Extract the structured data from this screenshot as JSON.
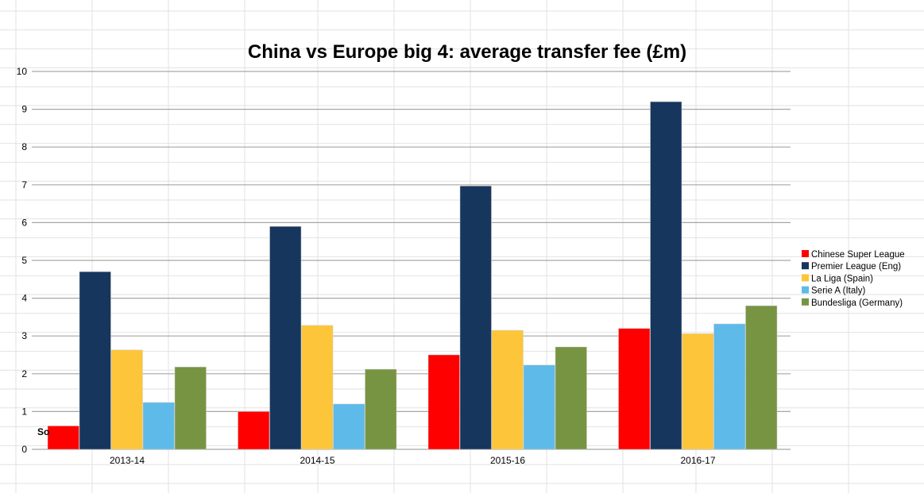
{
  "chart_data": {
    "type": "bar",
    "title": "China vs Europe big 4: average transfer fee (£m)",
    "categories": [
      "2013-14",
      "2014-15",
      "2015-16",
      "2016-17"
    ],
    "ylim": [
      0,
      10
    ],
    "yticks": [
      0,
      1,
      2,
      3,
      4,
      5,
      6,
      7,
      8,
      9,
      10
    ],
    "grid": true,
    "legend_position": "right",
    "series": [
      {
        "name": "Chinese Super League",
        "color": "#ff0000",
        "values": [
          0.62,
          1.0,
          2.5,
          3.2
        ]
      },
      {
        "name": "Premier League (Eng)",
        "color": "#17365d",
        "values": [
          4.7,
          5.9,
          6.97,
          9.2
        ]
      },
      {
        "name": "La Liga (Spain)",
        "color": "#fdc539",
        "values": [
          2.63,
          3.28,
          3.15,
          3.06
        ]
      },
      {
        "name": "Serie A (Italy)",
        "color": "#5ebae9",
        "values": [
          1.24,
          1.2,
          2.23,
          3.32
        ]
      },
      {
        "name": "Bundesliga (Germany)",
        "color": "#779442",
        "values": [
          2.18,
          2.12,
          2.71,
          3.8
        ]
      }
    ]
  },
  "background_text": "So"
}
